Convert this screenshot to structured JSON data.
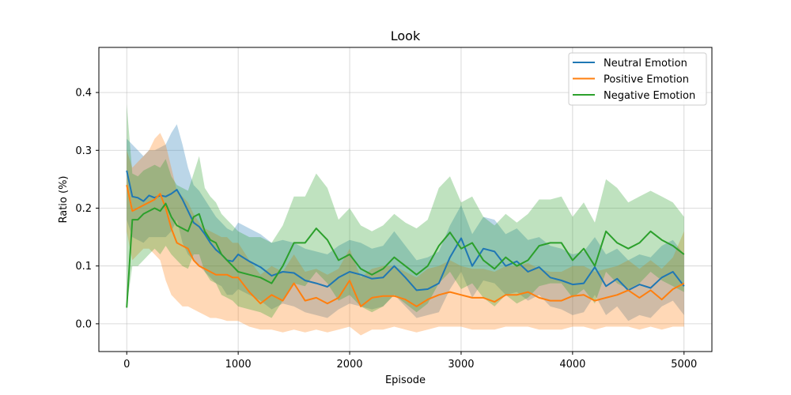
{
  "chart_data": {
    "type": "line",
    "title": "Look",
    "xlabel": "Episode",
    "ylabel": "Ratio (%)",
    "xlim": [
      -250,
      5250
    ],
    "ylim": [
      -0.048,
      0.478
    ],
    "xticks": [
      0,
      1000,
      2000,
      3000,
      4000,
      5000
    ],
    "yticks": [
      0.0,
      0.1,
      0.2,
      0.3,
      0.4
    ],
    "ytick_labels": [
      "0.0",
      "0.1",
      "0.2",
      "0.3",
      "0.4"
    ],
    "grid": true,
    "legend_position": "top-right",
    "x": [
      0,
      50,
      100,
      150,
      200,
      250,
      300,
      350,
      400,
      450,
      500,
      550,
      600,
      650,
      700,
      750,
      800,
      850,
      900,
      950,
      1000,
      1100,
      1200,
      1300,
      1400,
      1500,
      1600,
      1700,
      1800,
      1900,
      2000,
      2100,
      2200,
      2300,
      2400,
      2500,
      2600,
      2700,
      2800,
      2900,
      3000,
      3100,
      3200,
      3300,
      3400,
      3500,
      3600,
      3700,
      3800,
      3900,
      4000,
      4100,
      4200,
      4300,
      4400,
      4500,
      4600,
      4700,
      4800,
      4900,
      5000
    ],
    "series": [
      {
        "name": "Neutral Emotion",
        "color": "#1f77b4",
        "values": [
          0.265,
          0.22,
          0.218,
          0.212,
          0.222,
          0.218,
          0.222,
          0.22,
          0.225,
          0.232,
          0.215,
          0.195,
          0.175,
          0.168,
          0.155,
          0.14,
          0.128,
          0.12,
          0.11,
          0.108,
          0.12,
          0.108,
          0.098,
          0.083,
          0.09,
          0.088,
          0.075,
          0.07,
          0.064,
          0.08,
          0.09,
          0.085,
          0.078,
          0.08,
          0.1,
          0.08,
          0.058,
          0.06,
          0.07,
          0.115,
          0.148,
          0.1,
          0.13,
          0.125,
          0.1,
          0.108,
          0.09,
          0.098,
          0.08,
          0.075,
          0.068,
          0.07,
          0.098,
          0.065,
          0.078,
          0.058,
          0.068,
          0.062,
          0.08,
          0.09,
          0.065
        ],
        "lower": [
          0.18,
          0.15,
          0.145,
          0.14,
          0.15,
          0.15,
          0.15,
          0.15,
          0.16,
          0.18,
          0.14,
          0.12,
          0.11,
          0.1,
          0.09,
          0.08,
          0.07,
          0.065,
          0.05,
          0.05,
          0.06,
          0.05,
          0.04,
          0.025,
          0.035,
          0.03,
          0.02,
          0.015,
          0.01,
          0.025,
          0.035,
          0.03,
          0.025,
          0.03,
          0.05,
          0.03,
          0.01,
          0.015,
          0.02,
          0.06,
          0.09,
          0.045,
          0.075,
          0.07,
          0.05,
          0.055,
          0.04,
          0.05,
          0.03,
          0.025,
          0.015,
          0.02,
          0.05,
          0.015,
          0.03,
          0.005,
          0.015,
          0.01,
          0.03,
          0.04,
          0.015
        ],
        "upper": [
          0.32,
          0.31,
          0.3,
          0.29,
          0.3,
          0.3,
          0.305,
          0.31,
          0.33,
          0.345,
          0.31,
          0.27,
          0.24,
          0.23,
          0.215,
          0.2,
          0.185,
          0.175,
          0.165,
          0.16,
          0.175,
          0.165,
          0.155,
          0.14,
          0.145,
          0.14,
          0.13,
          0.125,
          0.12,
          0.135,
          0.145,
          0.14,
          0.13,
          0.135,
          0.16,
          0.135,
          0.11,
          0.115,
          0.125,
          0.17,
          0.205,
          0.155,
          0.185,
          0.18,
          0.155,
          0.165,
          0.145,
          0.15,
          0.135,
          0.13,
          0.12,
          0.125,
          0.15,
          0.12,
          0.13,
          0.11,
          0.12,
          0.115,
          0.135,
          0.145,
          0.12
        ]
      },
      {
        "name": "Positive Emotion",
        "color": "#ff7f0e",
        "values": [
          0.24,
          0.195,
          0.2,
          0.205,
          0.21,
          0.215,
          0.225,
          0.2,
          0.165,
          0.14,
          0.135,
          0.13,
          0.11,
          0.1,
          0.095,
          0.09,
          0.085,
          0.085,
          0.085,
          0.08,
          0.08,
          0.055,
          0.035,
          0.05,
          0.04,
          0.07,
          0.04,
          0.045,
          0.035,
          0.045,
          0.075,
          0.03,
          0.045,
          0.048,
          0.048,
          0.042,
          0.03,
          0.042,
          0.05,
          0.055,
          0.05,
          0.045,
          0.045,
          0.038,
          0.05,
          0.05,
          0.055,
          0.045,
          0.04,
          0.04,
          0.048,
          0.05,
          0.04,
          0.045,
          0.05,
          0.058,
          0.045,
          0.058,
          0.042,
          0.06,
          0.07
        ],
        "lower": [
          0.16,
          0.11,
          0.12,
          0.13,
          0.13,
          0.12,
          0.11,
          0.075,
          0.05,
          0.04,
          0.03,
          0.03,
          0.025,
          0.02,
          0.015,
          0.01,
          0.01,
          0.008,
          0.005,
          0.005,
          0.005,
          -0.005,
          -0.01,
          -0.01,
          -0.015,
          -0.01,
          -0.015,
          -0.01,
          -0.015,
          -0.01,
          -0.005,
          -0.02,
          -0.01,
          -0.01,
          -0.005,
          -0.01,
          -0.015,
          -0.01,
          -0.005,
          -0.005,
          -0.005,
          -0.01,
          -0.01,
          -0.01,
          -0.005,
          -0.005,
          -0.005,
          -0.01,
          -0.01,
          -0.01,
          -0.005,
          -0.005,
          -0.01,
          -0.005,
          -0.005,
          -0.005,
          -0.01,
          -0.005,
          -0.01,
          -0.005,
          -0.005
        ],
        "upper": [
          0.3,
          0.27,
          0.28,
          0.29,
          0.3,
          0.32,
          0.33,
          0.31,
          0.27,
          0.23,
          0.22,
          0.21,
          0.19,
          0.175,
          0.165,
          0.16,
          0.155,
          0.15,
          0.15,
          0.14,
          0.14,
          0.11,
          0.085,
          0.1,
          0.09,
          0.12,
          0.09,
          0.095,
          0.085,
          0.095,
          0.13,
          0.08,
          0.095,
          0.1,
          0.1,
          0.09,
          0.08,
          0.095,
          0.1,
          0.11,
          0.1,
          0.095,
          0.095,
          0.09,
          0.1,
          0.1,
          0.105,
          0.095,
          0.09,
          0.09,
          0.1,
          0.1,
          0.09,
          0.095,
          0.1,
          0.11,
          0.095,
          0.11,
          0.095,
          0.115,
          0.16
        ]
      },
      {
        "name": "Negative Emotion",
        "color": "#2ca02c",
        "values": [
          0.028,
          0.18,
          0.18,
          0.19,
          0.195,
          0.2,
          0.195,
          0.208,
          0.185,
          0.17,
          0.165,
          0.16,
          0.185,
          0.19,
          0.16,
          0.145,
          0.14,
          0.12,
          0.11,
          0.1,
          0.09,
          0.085,
          0.08,
          0.07,
          0.1,
          0.14,
          0.14,
          0.165,
          0.145,
          0.11,
          0.12,
          0.095,
          0.085,
          0.095,
          0.115,
          0.1,
          0.085,
          0.1,
          0.135,
          0.158,
          0.13,
          0.14,
          0.11,
          0.095,
          0.115,
          0.1,
          0.11,
          0.135,
          0.14,
          0.14,
          0.11,
          0.13,
          0.1,
          0.16,
          0.14,
          0.13,
          0.14,
          0.16,
          0.145,
          0.135,
          0.12
        ],
        "lower": [
          0.03,
          0.1,
          0.1,
          0.11,
          0.12,
          0.13,
          0.12,
          0.135,
          0.12,
          0.11,
          0.1,
          0.095,
          0.12,
          0.12,
          0.09,
          0.075,
          0.07,
          0.05,
          0.045,
          0.04,
          0.03,
          0.025,
          0.02,
          0.01,
          0.04,
          0.07,
          0.065,
          0.09,
          0.07,
          0.04,
          0.05,
          0.03,
          0.02,
          0.03,
          0.05,
          0.035,
          0.02,
          0.035,
          0.07,
          0.09,
          0.06,
          0.07,
          0.045,
          0.03,
          0.05,
          0.035,
          0.045,
          0.065,
          0.07,
          0.07,
          0.045,
          0.06,
          0.035,
          0.09,
          0.07,
          0.06,
          0.07,
          0.09,
          0.075,
          0.065,
          0.055
        ],
        "upper": [
          0.38,
          0.26,
          0.255,
          0.265,
          0.27,
          0.275,
          0.27,
          0.285,
          0.255,
          0.24,
          0.235,
          0.23,
          0.26,
          0.29,
          0.235,
          0.22,
          0.21,
          0.19,
          0.18,
          0.17,
          0.16,
          0.15,
          0.15,
          0.14,
          0.17,
          0.22,
          0.22,
          0.26,
          0.235,
          0.18,
          0.2,
          0.17,
          0.16,
          0.17,
          0.19,
          0.175,
          0.165,
          0.18,
          0.235,
          0.255,
          0.21,
          0.22,
          0.185,
          0.17,
          0.19,
          0.175,
          0.19,
          0.215,
          0.215,
          0.22,
          0.185,
          0.21,
          0.175,
          0.25,
          0.235,
          0.21,
          0.22,
          0.23,
          0.22,
          0.21,
          0.185
        ]
      }
    ]
  }
}
